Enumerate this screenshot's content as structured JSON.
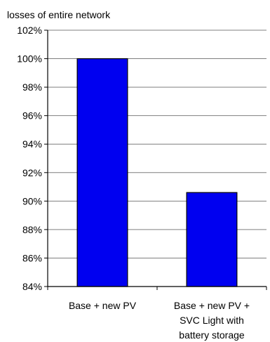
{
  "chart_data": {
    "type": "bar",
    "title": "losses of entire network",
    "xlabel": "",
    "ylabel": "",
    "ylim": [
      84,
      102
    ],
    "yticks": [
      "84%",
      "86%",
      "88%",
      "90%",
      "92%",
      "94%",
      "96%",
      "98%",
      "100%",
      "102%"
    ],
    "categories": [
      [
        "Base + new PV"
      ],
      [
        "Base + new PV +",
        "SVC Light with",
        "battery storage"
      ]
    ],
    "values": [
      100,
      90.6
    ],
    "grid": true,
    "legend": "none",
    "colors": {
      "bar_fill": "#0000f0",
      "bar_stroke": "#000000",
      "grid": "#7f7f7f",
      "axis": "#000000"
    }
  }
}
